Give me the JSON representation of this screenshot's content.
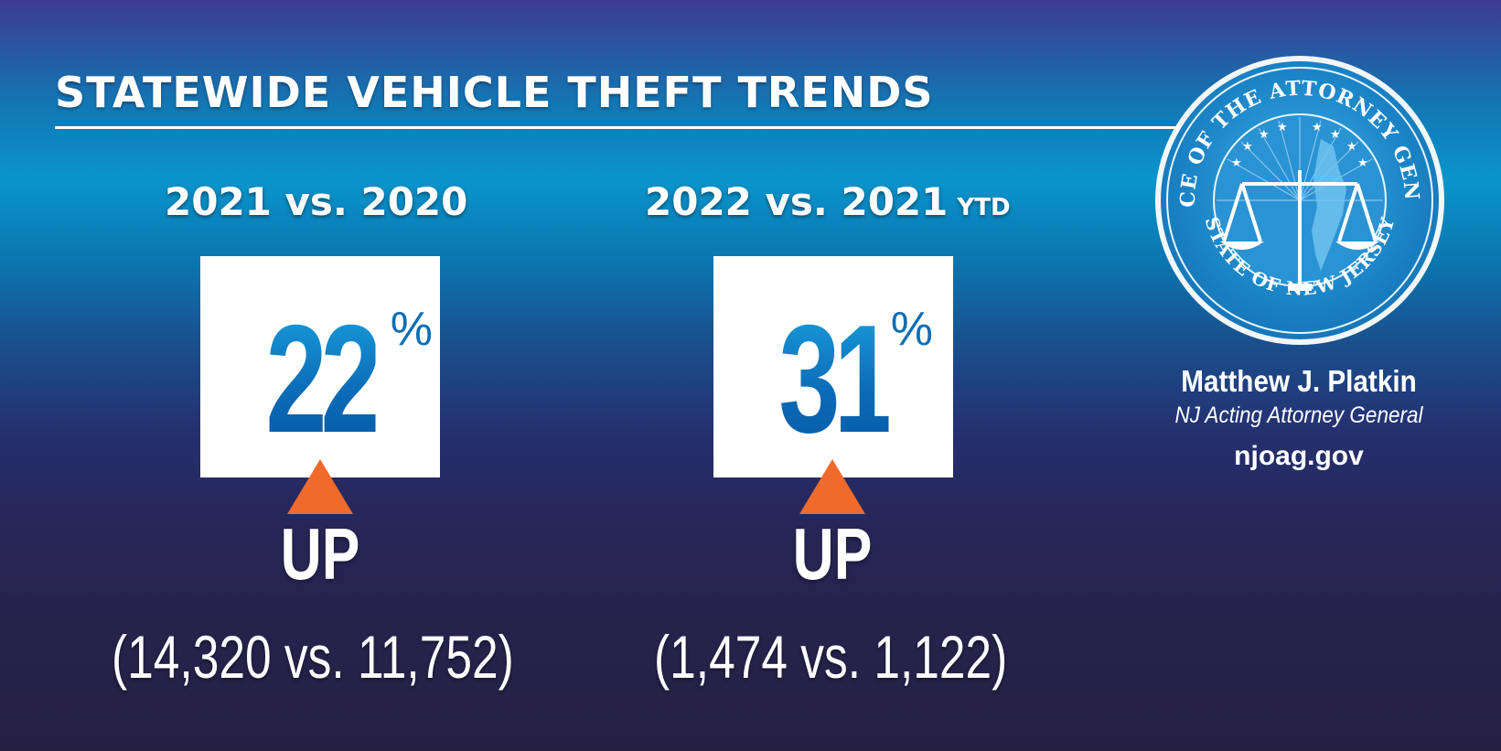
{
  "title": "STATEWIDE VEHICLE THEFT TRENDS",
  "comparisons": [
    {
      "period": "2021 vs. 2020",
      "period_suffix": "",
      "percent": "22",
      "percent_sign": "%",
      "direction": "UP",
      "counts": "(14,320 vs. 11,752)"
    },
    {
      "period": "2022 vs. 2021",
      "period_suffix": "YTD",
      "percent": "31",
      "percent_sign": "%",
      "direction": "UP",
      "counts": "(1,474 vs. 1,122)"
    }
  ],
  "seal": {
    "top_text": "OFFICE OF THE ATTORNEY GENERAL",
    "bottom_text": "STATE OF NEW JERSEY"
  },
  "signature": {
    "name": "Matthew J. Platkin",
    "role": "NJ Acting Attorney General",
    "website": "njoag.gov"
  },
  "colors": {
    "arrow": "#f06a2b",
    "number": "#0b6ab7"
  }
}
